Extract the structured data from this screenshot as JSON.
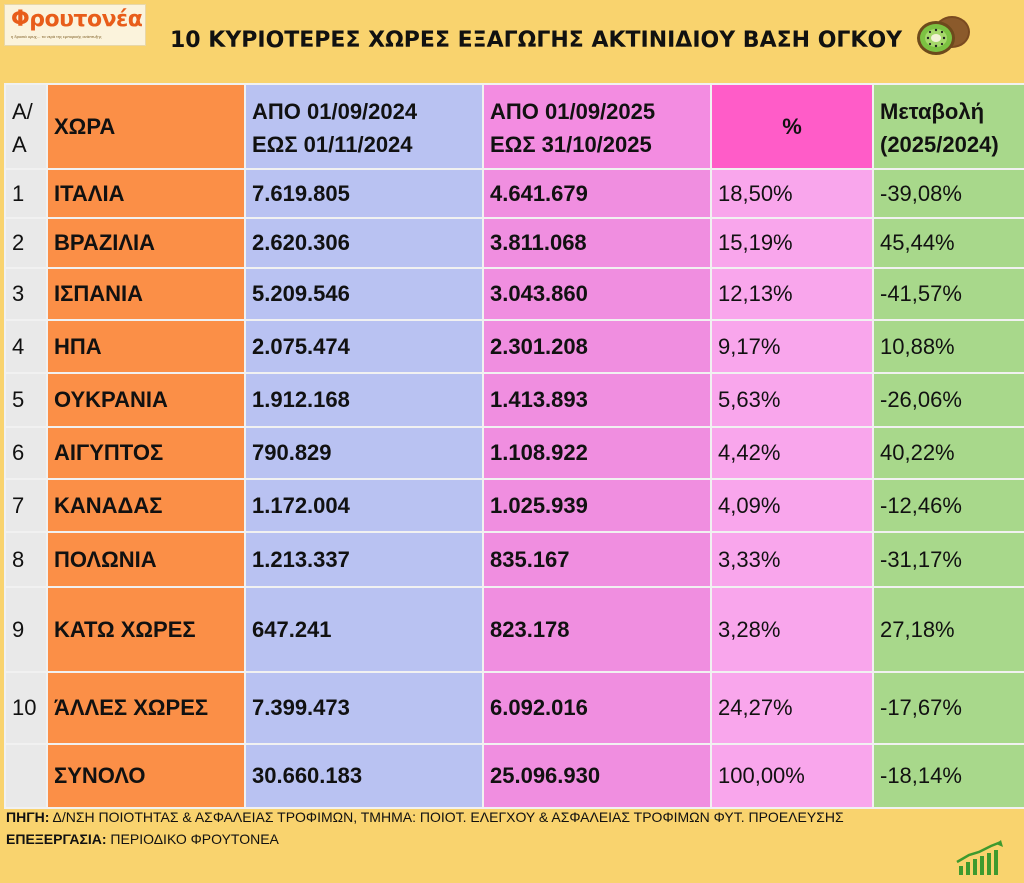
{
  "logo": {
    "name": "Φρουτονέα",
    "tagline": "η δροσιά ορυχ… τα νερά της εμπορικής ανάπτυξης"
  },
  "title": "10 ΚΥΡΙΟΤΕΡΕΣ ΧΩΡΕΣ ΕΞΑΓΩΓΗΣ ΑΚΤΙΝΙΔΙΟΥ ΒΑΣΗ ΟΓΚΟΥ",
  "table": {
    "headers": {
      "aa_line1": "Α/",
      "aa_line2": "Α",
      "country": "ΧΩΡΑ",
      "period1_line1": "ΑΠΟ 01/09/2024",
      "period1_line2": "ΕΩΣ  01/11/2024",
      "period2_line1": "ΑΠΟ 01/09/2025",
      "period2_line2": "ΕΩΣ  31/10/2025",
      "percent": "%",
      "change_line1": "Μεταβολή",
      "change_line2": "(2025/2024)"
    },
    "rows": [
      {
        "aa": "1",
        "country": "ΙΤΑΛΙΑ",
        "v2024": "7.619.805",
        "v2025": "4.641.679",
        "pct": "18,50%",
        "change": "-39,08%"
      },
      {
        "aa": "2",
        "country": "ΒΡΑΖΙΛΙΑ",
        "v2024": "2.620.306",
        "v2025": "3.811.068",
        "pct": "15,19%",
        "change": "45,44%"
      },
      {
        "aa": "3",
        "country": "ΙΣΠΑΝΙΑ",
        "v2024": "5.209.546",
        "v2025": "3.043.860",
        "pct": "12,13%",
        "change": "-41,57%"
      },
      {
        "aa": "4",
        "country": "ΗΠΑ",
        "v2024": "2.075.474",
        "v2025": "2.301.208",
        "pct": "9,17%",
        "change": "10,88%"
      },
      {
        "aa": "5",
        "country": "ΟΥΚΡΑΝΙΑ",
        "v2024": "1.912.168",
        "v2025": "1.413.893",
        "pct": "5,63%",
        "change": "-26,06%"
      },
      {
        "aa": "6",
        "country": "ΑΙΓΥΠΤΟΣ",
        "v2024": "790.829",
        "v2025": "1.108.922",
        "pct": "4,42%",
        "change": "40,22%"
      },
      {
        "aa": "7",
        "country": "ΚΑΝΑΔΑΣ",
        "v2024": "1.172.004",
        "v2025": "1.025.939",
        "pct": "4,09%",
        "change": "-12,46%"
      },
      {
        "aa": "8",
        "country": "ΠΟΛΩΝΙΑ",
        "v2024": "1.213.337",
        "v2025": "835.167",
        "pct": "3,33%",
        "change": "-31,17%"
      },
      {
        "aa": "9",
        "country": "ΚΑΤΩ ΧΩΡΕΣ",
        "v2024": "647.241",
        "v2025": "823.178",
        "pct": "3,28%",
        "change": "27,18%"
      },
      {
        "aa": "10",
        "country": "ΆΛΛΕΣ ΧΩΡΕΣ",
        "v2024": "7.399.473",
        "v2025": "6.092.016",
        "pct": "24,27%",
        "change": "-17,67%"
      }
    ],
    "total": {
      "aa": "",
      "country": "ΣΥΝΟΛΟ",
      "v2024": "30.660.183",
      "v2025": "25.096.930",
      "pct": "100,00%",
      "change": "-18,14%"
    }
  },
  "footer": {
    "source_label": "ΠΗΓΗ:",
    "source_text": " Δ/ΝΣΗ ΠΟΙΟΤΗΤΑΣ & ΑΣΦΑΛΕΙΑΣ ΤΡΟΦΙΜΩΝ, ΤΜΗΜΑ: ΠΟΙΟΤ. ΕΛΕΓΧΟΥ & ΑΣΦΑΛΕΙΑΣ ΤΡΟΦΙΜΩΝ ΦΥΤ. ΠΡΟΕΛΕΥΣΗΣ",
    "processing_label": "ΕΠΕΞΕΡΓΑΣΙΑ:",
    "processing_text": " ΠΕΡΙΟΔΙΚΟ ΦΡΟΥΤΟΝΕΑ"
  },
  "icons": {
    "kiwi": "kiwi-icon",
    "growth_chart": "growth-chart-icon"
  },
  "colors": {
    "background": "#f9d36e",
    "country_col": "#fb8f47",
    "period1_col": "#b9c2f2",
    "period2_col": "#f08ee0",
    "percent_col": "#f9a6ec",
    "percent_header": "#ff5cc8",
    "change_col": "#a8d88b"
  }
}
